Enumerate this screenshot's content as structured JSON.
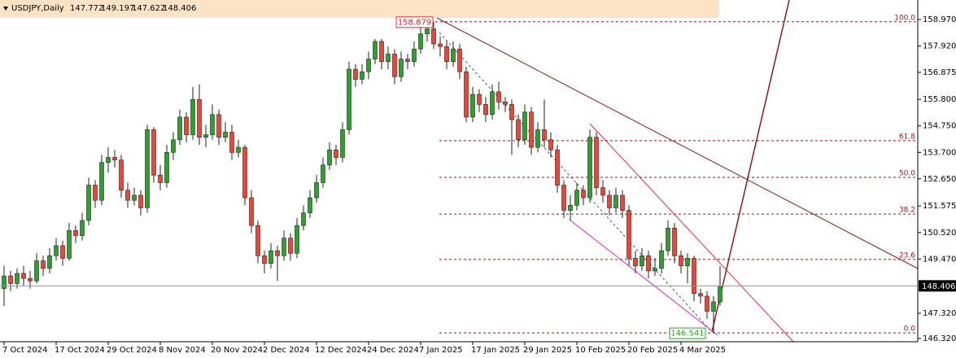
{
  "chart_data": {
    "type": "candlestick",
    "title": "USDJPY,Daily",
    "up_color": "#2ea02e",
    "down_color": "#ee4335",
    "wick_color": "#222222",
    "ylim": [
      146.19,
      159.744
    ],
    "yticks": [
      {
        "value": 158.97,
        "label": "158.970"
      },
      {
        "value": 157.92,
        "label": "157.920"
      },
      156.875,
      {
        "value": 155.8,
        "label": "155.800"
      },
      {
        "value": 154.75,
        "label": "154.750"
      },
      {
        "value": 153.7,
        "label": "153.700"
      },
      {
        "value": 152.65,
        "label": "152.650"
      },
      151.575,
      {
        "value": 150.52,
        "label": "150.520"
      },
      {
        "value": 149.47,
        "label": "149.470"
      },
      {
        "value": 147.32,
        "label": "147.320"
      },
      {
        "value": 146.32,
        "label": "146.320"
      }
    ],
    "x_labels": [
      "7 Oct 2024",
      "17 Oct 2024",
      "29 Oct 2024",
      "8 Nov 2024",
      "20 Nov 2024",
      "2 Dec 2024",
      "12 Dec 2024",
      "24 Dec 2024",
      "7 Jan 2025",
      "17 Jan 2025",
      "29 Jan 2025",
      "10 Feb 2025",
      "20 Feb 2025",
      "4 Mar 2025"
    ],
    "fibonacci": [
      {
        "level": "100.0",
        "price": 158.879
      },
      {
        "level": "61.8",
        "price": 154.166
      },
      {
        "level": "50.0",
        "price": 152.71
      },
      {
        "level": "38.2",
        "price": 151.254
      },
      {
        "level": "23.6",
        "price": 149.453
      },
      {
        "level": "0.0",
        "price": 146.541
      }
    ],
    "ohlc": [
      [
        148.3,
        149.2,
        147.6,
        148.8
      ],
      [
        148.8,
        149.0,
        148.2,
        148.5
      ],
      [
        148.5,
        149.1,
        148.3,
        148.9
      ],
      [
        148.9,
        149.2,
        148.4,
        148.7
      ],
      [
        148.7,
        149.0,
        148.3,
        148.6
      ],
      [
        148.6,
        149.7,
        148.5,
        149.4
      ],
      [
        149.4,
        149.6,
        148.8,
        149.1
      ],
      [
        149.1,
        149.9,
        148.9,
        149.6
      ],
      [
        149.6,
        150.3,
        149.4,
        150.0
      ],
      [
        150.0,
        150.2,
        149.2,
        149.5
      ],
      [
        149.5,
        150.9,
        149.4,
        150.6
      ],
      [
        150.6,
        150.8,
        150.1,
        150.4
      ],
      [
        150.4,
        151.3,
        150.2,
        151.0
      ],
      [
        151.0,
        152.7,
        150.8,
        152.4
      ],
      [
        152.4,
        152.6,
        151.5,
        151.8
      ],
      [
        151.8,
        153.6,
        151.6,
        153.3
      ],
      [
        153.3,
        153.9,
        152.9,
        153.5
      ],
      [
        153.5,
        153.8,
        153.1,
        153.4
      ],
      [
        153.4,
        153.6,
        151.9,
        152.2
      ],
      [
        152.2,
        152.5,
        151.5,
        151.8
      ],
      [
        151.8,
        152.3,
        151.6,
        152.0
      ],
      [
        152.0,
        152.2,
        151.2,
        151.5
      ],
      [
        151.5,
        154.8,
        151.3,
        154.6
      ],
      [
        154.6,
        154.7,
        152.5,
        152.8
      ],
      [
        152.8,
        153.2,
        152.2,
        152.5
      ],
      [
        152.5,
        154.0,
        152.3,
        153.7
      ],
      [
        153.7,
        154.5,
        153.4,
        154.2
      ],
      [
        154.2,
        155.4,
        154.0,
        155.1
      ],
      [
        155.1,
        155.3,
        154.1,
        154.4
      ],
      [
        154.4,
        156.3,
        154.2,
        155.8
      ],
      [
        155.8,
        156.4,
        154.0,
        154.3
      ],
      [
        154.3,
        154.8,
        153.9,
        154.4
      ],
      [
        154.4,
        155.6,
        154.2,
        155.2
      ],
      [
        155.2,
        155.4,
        154.0,
        154.3
      ],
      [
        154.3,
        154.9,
        154.1,
        154.5
      ],
      [
        154.5,
        154.8,
        153.4,
        153.7
      ],
      [
        153.7,
        154.2,
        153.5,
        153.9
      ],
      [
        153.9,
        154.0,
        151.6,
        151.9
      ],
      [
        151.9,
        152.2,
        150.5,
        150.8
      ],
      [
        150.8,
        151.0,
        149.3,
        149.6
      ],
      [
        149.6,
        149.8,
        148.9,
        149.3
      ],
      [
        149.3,
        150.1,
        149.1,
        149.8
      ],
      [
        149.8,
        150.0,
        148.6,
        149.6
      ],
      [
        149.6,
        150.6,
        149.4,
        150.3
      ],
      [
        150.3,
        150.5,
        149.4,
        149.7
      ],
      [
        149.7,
        151.1,
        149.5,
        150.8
      ],
      [
        150.8,
        151.6,
        150.6,
        151.3
      ],
      [
        151.3,
        152.2,
        151.1,
        151.9
      ],
      [
        151.9,
        152.8,
        151.7,
        152.5
      ],
      [
        152.5,
        153.5,
        152.3,
        153.2
      ],
      [
        153.2,
        154.1,
        153.0,
        153.8
      ],
      [
        153.8,
        154.0,
        153.2,
        153.5
      ],
      [
        153.5,
        154.9,
        153.3,
        154.6
      ],
      [
        154.6,
        157.3,
        154.4,
        157.0
      ],
      [
        157.0,
        157.2,
        156.3,
        156.6
      ],
      [
        156.6,
        157.2,
        156.4,
        156.9
      ],
      [
        156.9,
        157.7,
        156.6,
        157.4
      ],
      [
        157.4,
        158.2,
        157.2,
        158.1
      ],
      [
        158.1,
        158.2,
        157.0,
        157.3
      ],
      [
        157.3,
        157.9,
        157.0,
        157.6
      ],
      [
        157.6,
        157.8,
        156.4,
        156.7
      ],
      [
        156.7,
        157.7,
        156.5,
        157.4
      ],
      [
        157.4,
        157.6,
        157.0,
        157.3
      ],
      [
        157.3,
        158.1,
        157.1,
        157.8
      ],
      [
        157.8,
        158.7,
        157.6,
        158.4
      ],
      [
        158.4,
        158.8,
        158.1,
        158.6
      ],
      [
        158.6,
        158.879,
        157.8,
        158.0
      ],
      [
        158.0,
        158.3,
        157.5,
        157.9
      ],
      [
        157.9,
        158.1,
        157.0,
        157.3
      ],
      [
        157.3,
        158.1,
        157.1,
        157.8
      ],
      [
        157.8,
        158.0,
        156.6,
        156.9
      ],
      [
        156.9,
        157.1,
        154.9,
        155.1
      ],
      [
        155.1,
        156.3,
        154.9,
        156.0
      ],
      [
        156.0,
        156.2,
        155.3,
        155.6
      ],
      [
        155.6,
        155.9,
        154.9,
        155.2
      ],
      [
        155.2,
        156.4,
        155.0,
        156.1
      ],
      [
        156.1,
        156.5,
        155.4,
        155.7
      ],
      [
        155.7,
        155.9,
        155.3,
        155.6
      ],
      [
        155.6,
        155.8,
        153.6,
        155.0
      ],
      [
        155.0,
        155.2,
        153.9,
        154.2
      ],
      [
        154.2,
        155.6,
        154.0,
        155.3
      ],
      [
        155.3,
        155.5,
        153.6,
        153.9
      ],
      [
        153.9,
        154.9,
        153.7,
        154.6
      ],
      [
        154.6,
        155.8,
        153.9,
        154.2
      ],
      [
        154.2,
        154.5,
        153.5,
        153.8
      ],
      [
        153.8,
        154.0,
        152.1,
        152.4
      ],
      [
        152.4,
        152.6,
        151.1,
        151.4
      ],
      [
        151.4,
        152.0,
        151.0,
        151.6
      ],
      [
        151.6,
        152.5,
        151.4,
        152.2
      ],
      [
        152.2,
        152.4,
        151.6,
        151.9
      ],
      [
        151.9,
        154.6,
        151.7,
        154.3
      ],
      [
        154.3,
        154.5,
        152.0,
        152.3
      ],
      [
        152.3,
        152.6,
        151.7,
        152.0
      ],
      [
        152.0,
        152.2,
        151.2,
        151.5
      ],
      [
        151.5,
        152.3,
        151.3,
        152.0
      ],
      [
        152.0,
        152.2,
        151.1,
        151.4
      ],
      [
        151.4,
        151.6,
        149.2,
        149.5
      ],
      [
        149.5,
        149.8,
        148.9,
        149.2
      ],
      [
        149.2,
        149.9,
        149.0,
        149.6
      ],
      [
        149.6,
        149.8,
        148.7,
        149.0
      ],
      [
        149.0,
        149.5,
        148.8,
        149.1
      ],
      [
        149.1,
        150.1,
        148.9,
        149.8
      ],
      [
        149.8,
        151.0,
        149.6,
        150.7
      ],
      [
        150.7,
        150.9,
        149.3,
        149.6
      ],
      [
        149.6,
        149.8,
        148.9,
        149.2
      ],
      [
        149.2,
        149.7,
        148.5,
        149.5
      ],
      [
        149.5,
        149.6,
        147.8,
        148.1
      ],
      [
        148.1,
        148.3,
        147.7,
        148.0
      ],
      [
        148.0,
        148.2,
        147.1,
        147.4
      ],
      [
        147.4,
        148.0,
        146.541,
        147.772
      ],
      [
        147.772,
        149.197,
        147.622,
        148.406
      ]
    ]
  }
}
